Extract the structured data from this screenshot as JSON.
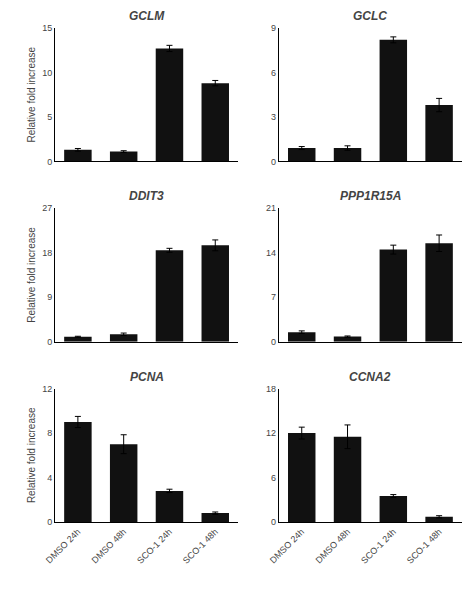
{
  "chart_data": [
    {
      "type": "bar",
      "title": "GCLM",
      "categories": [
        "DMSO 24h",
        "DMSO 48h",
        "SCO-1 24h",
        "SCO-1 48h"
      ],
      "values": [
        1.3,
        1.1,
        12.7,
        8.8
      ],
      "errors": [
        0.15,
        0.1,
        0.35,
        0.3
      ],
      "color": "#111111",
      "ylim": [
        0,
        15
      ],
      "yticks": [
        0,
        5,
        10,
        15
      ],
      "ylabel": "Relative fold increase",
      "grid": false,
      "tick_labels": "y"
    },
    {
      "type": "bar",
      "title": "GCLC",
      "categories": [
        "DMSO 24h",
        "DMSO 48h",
        "SCO-1 24h",
        "SCO-1 48h"
      ],
      "values": [
        0.9,
        0.9,
        8.2,
        3.8
      ],
      "errors": [
        0.1,
        0.15,
        0.2,
        0.45
      ],
      "color": "#111111",
      "ylim": [
        0,
        9
      ],
      "yticks": [
        0,
        3,
        6,
        9
      ],
      "grid": false,
      "tick_labels": "y"
    },
    {
      "type": "bar",
      "title": "DDIT3",
      "categories": [
        "DMSO 24h",
        "DMSO 48h",
        "SCO-1 24h",
        "SCO-1 48h"
      ],
      "values": [
        1.0,
        1.5,
        18.5,
        19.5
      ],
      "errors": [
        0.1,
        0.25,
        0.4,
        1.1
      ],
      "color": "#111111",
      "ylim": [
        0,
        27
      ],
      "yticks": [
        0,
        9,
        18,
        27
      ],
      "ylabel": "Relative fold increase",
      "grid": false,
      "tick_labels": "y"
    },
    {
      "type": "bar",
      "title": "PPP1R15A",
      "categories": [
        "DMSO 24h",
        "DMSO 48h",
        "SCO-1 24h",
        "SCO-1 48h"
      ],
      "values": [
        1.5,
        0.8,
        14.5,
        15.5
      ],
      "errors": [
        0.2,
        0.1,
        0.7,
        1.3
      ],
      "color": "#111111",
      "ylim": [
        0,
        21
      ],
      "yticks": [
        0,
        7,
        14,
        21
      ],
      "grid": false,
      "tick_labels": "y"
    },
    {
      "type": "bar",
      "title": "PCNA",
      "categories": [
        "DMSO 24h",
        "DMSO 48h",
        "SCO-1 24h",
        "SCO-1 48h"
      ],
      "values": [
        9.0,
        7.0,
        2.8,
        0.8
      ],
      "errors": [
        0.5,
        0.85,
        0.15,
        0.1
      ],
      "color": "#111111",
      "ylim": [
        0,
        12
      ],
      "yticks": [
        0,
        4,
        8,
        12
      ],
      "ylabel": "Relative fold increase",
      "grid": false
    },
    {
      "type": "bar",
      "title": "CCNA2",
      "categories": [
        "DMSO 24h",
        "DMSO 48h",
        "SCO-1 24h",
        "SCO-1 48h"
      ],
      "values": [
        12.0,
        11.5,
        3.5,
        0.7
      ],
      "errors": [
        0.8,
        1.6,
        0.2,
        0.15
      ],
      "color": "#111111",
      "ylim": [
        0,
        18
      ],
      "yticks": [
        0,
        6,
        12,
        18
      ],
      "grid": false
    }
  ]
}
